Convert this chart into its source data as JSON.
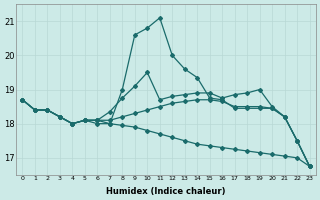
{
  "xlabel": "Humidex (Indice chaleur)",
  "bg_color": "#cceae7",
  "grid_color": "#b8d8d5",
  "line_color": "#1a6b6b",
  "xlim": [
    -0.5,
    23.5
  ],
  "ylim": [
    16.5,
    21.5
  ],
  "yticks": [
    17,
    18,
    19,
    20,
    21
  ],
  "xticks": [
    0,
    1,
    2,
    3,
    4,
    5,
    6,
    7,
    8,
    9,
    10,
    11,
    12,
    13,
    14,
    15,
    16,
    17,
    18,
    19,
    20,
    21,
    22,
    23
  ],
  "line_big_peak_x": [
    0,
    1,
    2,
    3,
    4,
    5,
    6,
    7,
    8,
    9,
    10,
    11,
    12,
    13,
    14,
    15,
    16,
    17,
    18,
    19,
    20,
    21,
    22,
    23
  ],
  "line_big_peak_y": [
    18.7,
    18.4,
    18.4,
    18.2,
    18.0,
    18.1,
    18.0,
    18.0,
    19.0,
    20.6,
    20.8,
    21.1,
    20.0,
    19.6,
    19.35,
    18.75,
    18.7,
    18.45,
    18.45,
    18.45,
    18.45,
    18.2,
    17.5,
    16.75
  ],
  "line_med_peak_x": [
    0,
    1,
    2,
    3,
    4,
    5,
    6,
    7,
    8,
    9,
    10,
    11,
    12,
    13,
    14,
    15,
    16,
    17,
    18,
    19,
    20,
    21,
    22,
    23
  ],
  "line_med_peak_y": [
    18.7,
    18.4,
    18.4,
    18.2,
    18.0,
    18.1,
    18.1,
    18.35,
    18.75,
    19.1,
    19.5,
    18.7,
    18.8,
    18.85,
    18.9,
    18.9,
    18.75,
    18.85,
    18.9,
    19.0,
    18.5,
    18.2,
    17.5,
    16.75
  ],
  "line_flat_x": [
    0,
    1,
    2,
    3,
    4,
    5,
    6,
    7,
    8,
    9,
    10,
    11,
    12,
    13,
    14,
    15,
    16,
    17,
    18,
    19,
    20,
    21,
    22,
    23
  ],
  "line_flat_y": [
    18.7,
    18.4,
    18.4,
    18.2,
    18.0,
    18.1,
    18.1,
    18.1,
    18.2,
    18.3,
    18.4,
    18.5,
    18.6,
    18.65,
    18.7,
    18.7,
    18.65,
    18.5,
    18.5,
    18.5,
    18.45,
    18.2,
    17.5,
    16.75
  ],
  "line_desc_x": [
    0,
    1,
    2,
    3,
    4,
    5,
    6,
    7,
    8,
    9,
    10,
    11,
    12,
    13,
    14,
    15,
    16,
    17,
    18,
    19,
    20,
    21,
    22,
    23
  ],
  "line_desc_y": [
    18.7,
    18.4,
    18.4,
    18.2,
    18.0,
    18.1,
    18.1,
    18.0,
    17.95,
    17.9,
    17.8,
    17.7,
    17.6,
    17.5,
    17.4,
    17.35,
    17.3,
    17.25,
    17.2,
    17.15,
    17.1,
    17.05,
    17.0,
    16.75
  ]
}
